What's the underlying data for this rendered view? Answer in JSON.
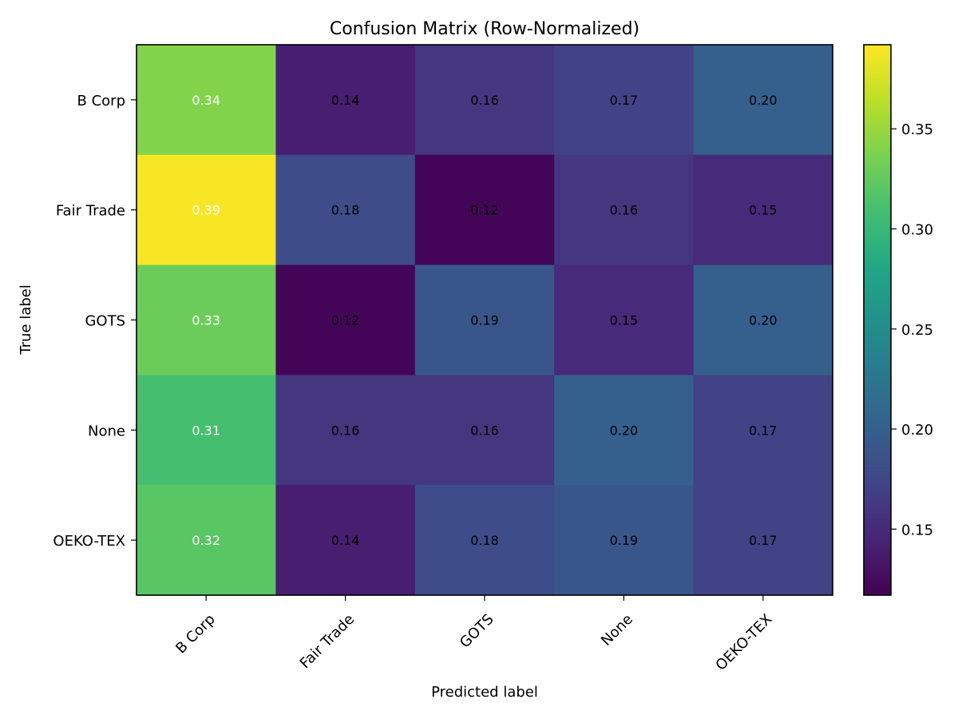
{
  "chart_data": {
    "type": "heatmap",
    "title": "Confusion Matrix (Row-Normalized)",
    "xlabel": "Predicted label",
    "ylabel": "True label",
    "x_categories": [
      "B Corp",
      "Fair Trade",
      "GOTS",
      "None",
      "OEKO-TEX"
    ],
    "y_categories": [
      "B Corp",
      "Fair Trade",
      "GOTS",
      "None",
      "OEKO-TEX"
    ],
    "values": [
      [
        0.34,
        0.14,
        0.16,
        0.17,
        0.2
      ],
      [
        0.39,
        0.18,
        0.12,
        0.16,
        0.15
      ],
      [
        0.33,
        0.12,
        0.19,
        0.15,
        0.2
      ],
      [
        0.31,
        0.16,
        0.16,
        0.2,
        0.17
      ],
      [
        0.32,
        0.14,
        0.18,
        0.19,
        0.17
      ]
    ],
    "value_labels": [
      [
        "0.34",
        "0.14",
        "0.16",
        "0.17",
        "0.20"
      ],
      [
        "0.39",
        "0.18",
        "0.12",
        "0.16",
        "0.15"
      ],
      [
        "0.33",
        "0.12",
        "0.19",
        "0.15",
        "0.20"
      ],
      [
        "0.31",
        "0.16",
        "0.16",
        "0.20",
        "0.17"
      ],
      [
        "0.32",
        "0.14",
        "0.18",
        "0.19",
        "0.17"
      ]
    ],
    "colormap": "viridis",
    "color_range": [
      0.117,
      0.392
    ],
    "colorbar_ticks": [
      0.15,
      0.2,
      0.25,
      0.3,
      0.35
    ],
    "colorbar_tick_labels": [
      "0.15",
      "0.20",
      "0.25",
      "0.30",
      "0.35"
    ],
    "text_colors": {
      "light": "#ffffff",
      "dark": "#000000"
    },
    "grid": false
  }
}
